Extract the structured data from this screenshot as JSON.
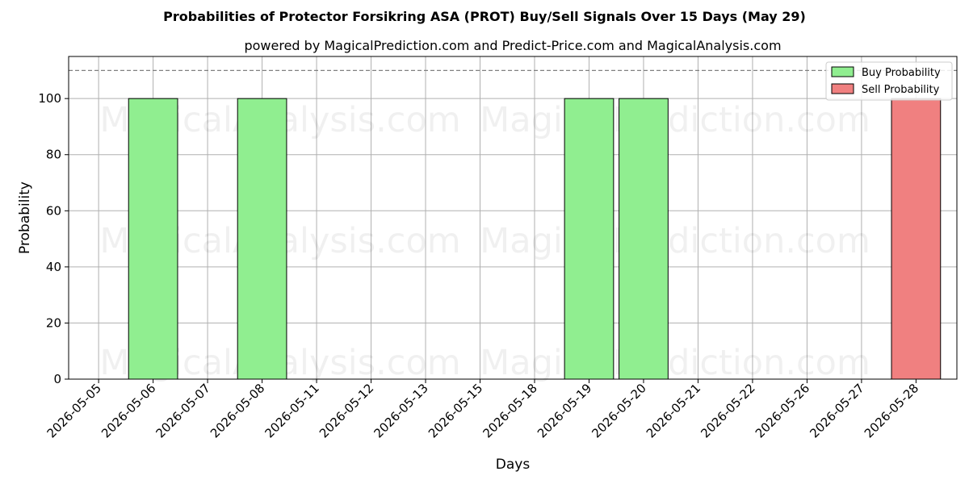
{
  "chart_data": {
    "type": "bar",
    "title": "Probabilities of Protector Forsikring ASA (PROT) Buy/Sell Signals Over 15 Days (May 29)",
    "subtitle": "powered by MagicalPrediction.com and Predict-Price.com and MagicalAnalysis.com",
    "xlabel": "Days",
    "ylabel": "Probability",
    "categories": [
      "2026-05-05",
      "2026-05-06",
      "2026-05-07",
      "2026-05-08",
      "2026-05-11",
      "2026-05-12",
      "2026-05-13",
      "2026-05-15",
      "2026-05-18",
      "2026-05-19",
      "2026-05-20",
      "2026-05-21",
      "2026-05-22",
      "2026-05-26",
      "2026-05-27",
      "2026-05-28"
    ],
    "series": [
      {
        "name": "Buy Probability",
        "color": "#90ee90",
        "values": [
          0,
          100,
          0,
          100,
          0,
          0,
          0,
          0,
          0,
          100,
          100,
          0,
          0,
          0,
          0,
          0
        ]
      },
      {
        "name": "Sell Probability",
        "color": "#f08080",
        "values": [
          0,
          0,
          0,
          0,
          0,
          0,
          0,
          0,
          0,
          0,
          0,
          0,
          0,
          0,
          0,
          100
        ]
      }
    ],
    "ylim": [
      0,
      115
    ],
    "yticks": [
      0,
      20,
      40,
      60,
      80,
      100
    ],
    "reference_line": 110,
    "grid": true,
    "legend_position": "top-right",
    "watermarks": [
      "MagicalAnalysis.com",
      "MagicalPrediction.com"
    ]
  }
}
